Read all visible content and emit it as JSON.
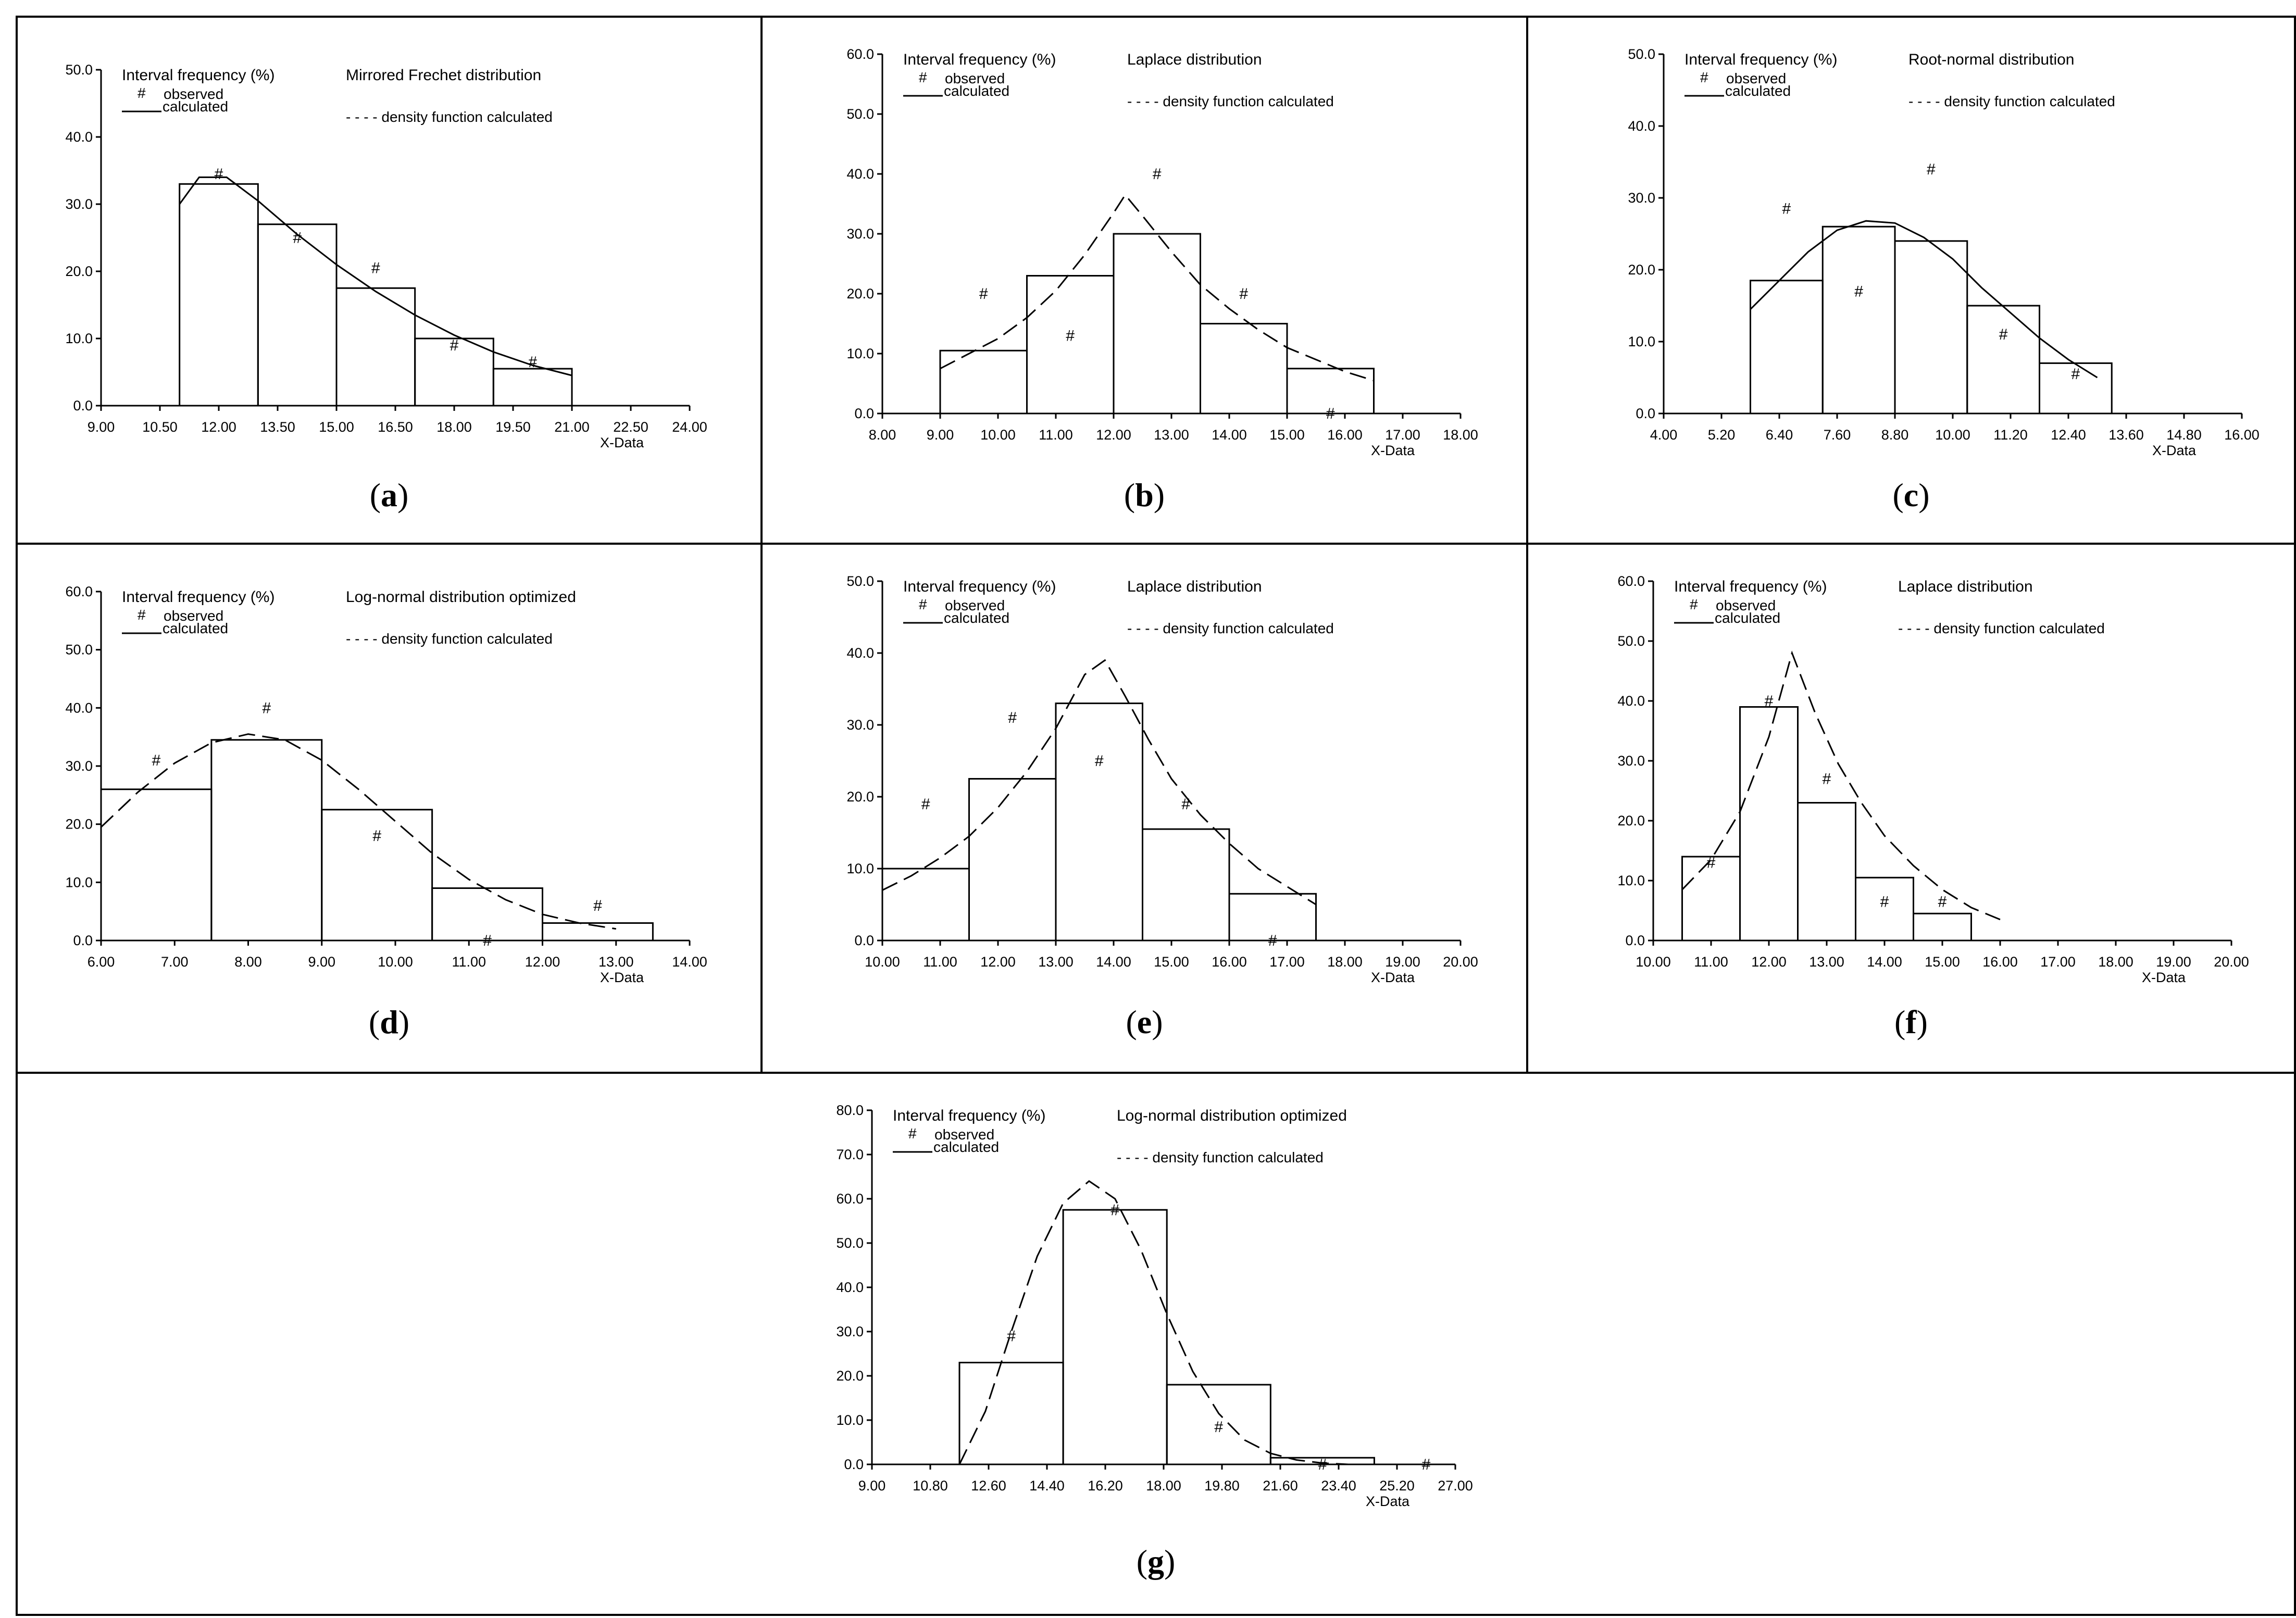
{
  "chart_data": [
    {
      "type": "bar",
      "panel_label": "a",
      "title": "Mirrored Frechet distribution",
      "ylabel": "Interval frequency (%)",
      "xlabel": "X-Data",
      "legend": {
        "observed_symbol": "#",
        "observed_label": "observed",
        "calculated_label": "calculated",
        "density_label": "- - - - density function calculated"
      },
      "curve_style": "solid",
      "xlim": [
        9.0,
        24.0
      ],
      "ylim": [
        0,
        50
      ],
      "xticks": [
        "9.00",
        "10.50",
        "12.00",
        "13.50",
        "15.00",
        "16.50",
        "18.00",
        "19.50",
        "21.00",
        "22.50",
        "24.00"
      ],
      "yticks": [
        "0.0",
        "10.0",
        "20.0",
        "30.0",
        "40.0",
        "50.0"
      ],
      "bins": [
        {
          "x0": 11.0,
          "x1": 13.0,
          "value": 33.0
        },
        {
          "x0": 13.0,
          "x1": 15.0,
          "value": 27.0
        },
        {
          "x0": 15.0,
          "x1": 17.0,
          "value": 17.5
        },
        {
          "x0": 17.0,
          "x1": 19.0,
          "value": 10.0
        },
        {
          "x0": 19.0,
          "x1": 21.0,
          "value": 5.5
        }
      ],
      "observed": [
        {
          "x": 12.0,
          "y": 34.5
        },
        {
          "x": 14.0,
          "y": 25.0
        },
        {
          "x": 16.0,
          "y": 20.5
        },
        {
          "x": 18.0,
          "y": 9.0
        },
        {
          "x": 20.0,
          "y": 6.5
        }
      ],
      "curve": [
        [
          11.0,
          30.0
        ],
        [
          11.5,
          34.0
        ],
        [
          12.2,
          34.0
        ],
        [
          13.0,
          30.5
        ],
        [
          14.0,
          25.5
        ],
        [
          15.0,
          21.0
        ],
        [
          16.0,
          17.0
        ],
        [
          17.0,
          13.5
        ],
        [
          18.0,
          10.5
        ],
        [
          19.0,
          8.0
        ],
        [
          20.0,
          6.0
        ],
        [
          21.0,
          4.5
        ]
      ]
    },
    {
      "type": "bar",
      "panel_label": "b",
      "title": "Laplace distribution",
      "ylabel": "Interval frequency (%)",
      "xlabel": "X-Data",
      "legend": {
        "observed_symbol": "#",
        "observed_label": "observed",
        "calculated_label": "calculated",
        "density_label": "- - - - density function calculated"
      },
      "curve_style": "dashed",
      "xlim": [
        8.0,
        18.0
      ],
      "ylim": [
        0,
        60
      ],
      "xticks": [
        "8.00",
        "9.00",
        "10.00",
        "11.00",
        "12.00",
        "13.00",
        "14.00",
        "15.00",
        "16.00",
        "17.00",
        "18.00"
      ],
      "yticks": [
        "0.0",
        "10.0",
        "20.0",
        "30.0",
        "40.0",
        "50.0",
        "60.0"
      ],
      "bins": [
        {
          "x0": 9.0,
          "x1": 10.5,
          "value": 10.5
        },
        {
          "x0": 10.5,
          "x1": 12.0,
          "value": 23.0
        },
        {
          "x0": 12.0,
          "x1": 13.5,
          "value": 30.0
        },
        {
          "x0": 13.5,
          "x1": 15.0,
          "value": 15.0
        },
        {
          "x0": 15.0,
          "x1": 16.5,
          "value": 7.5
        }
      ],
      "observed": [
        {
          "x": 9.75,
          "y": 20.0
        },
        {
          "x": 11.25,
          "y": 13.0
        },
        {
          "x": 12.75,
          "y": 40.0
        },
        {
          "x": 14.25,
          "y": 20.0
        },
        {
          "x": 15.75,
          "y": 0.0
        }
      ],
      "curve": [
        [
          9.0,
          7.5
        ],
        [
          9.5,
          10.0
        ],
        [
          10.0,
          12.5
        ],
        [
          10.5,
          16.0
        ],
        [
          11.0,
          20.5
        ],
        [
          11.5,
          26.5
        ],
        [
          12.0,
          33.5
        ],
        [
          12.2,
          36.5
        ],
        [
          12.5,
          33.0
        ],
        [
          13.0,
          27.0
        ],
        [
          13.5,
          21.5
        ],
        [
          14.0,
          17.5
        ],
        [
          14.5,
          14.0
        ],
        [
          15.0,
          11.0
        ],
        [
          15.5,
          9.0
        ],
        [
          16.0,
          7.0
        ],
        [
          16.5,
          5.5
        ]
      ]
    },
    {
      "type": "bar",
      "panel_label": "c",
      "title": "Root-normal distribution",
      "ylabel": "Interval frequency (%)",
      "xlabel": "X-Data",
      "legend": {
        "observed_symbol": "#",
        "observed_label": "observed",
        "calculated_label": "calculated",
        "density_label": "- - - - density function calculated"
      },
      "curve_style": "solid",
      "xlim": [
        4.0,
        16.0
      ],
      "ylim": [
        0,
        50
      ],
      "xticks": [
        "4.00",
        "5.20",
        "6.40",
        "7.60",
        "8.80",
        "10.00",
        "11.20",
        "12.40",
        "13.60",
        "14.80",
        "16.00"
      ],
      "yticks": [
        "0.0",
        "10.0",
        "20.0",
        "30.0",
        "40.0",
        "50.0"
      ],
      "bins": [
        {
          "x0": 5.8,
          "x1": 7.3,
          "value": 18.5
        },
        {
          "x0": 7.3,
          "x1": 8.8,
          "value": 26.0
        },
        {
          "x0": 8.8,
          "x1": 10.3,
          "value": 24.0
        },
        {
          "x0": 10.3,
          "x1": 11.8,
          "value": 15.0
        },
        {
          "x0": 11.8,
          "x1": 13.3,
          "value": 7.0
        }
      ],
      "observed": [
        {
          "x": 6.55,
          "y": 28.5
        },
        {
          "x": 8.05,
          "y": 17.0
        },
        {
          "x": 9.55,
          "y": 34.0
        },
        {
          "x": 11.05,
          "y": 11.0
        },
        {
          "x": 12.55,
          "y": 5.5
        }
      ],
      "curve": [
        [
          5.8,
          14.5
        ],
        [
          6.4,
          18.5
        ],
        [
          7.0,
          22.5
        ],
        [
          7.6,
          25.5
        ],
        [
          8.2,
          26.8
        ],
        [
          8.8,
          26.5
        ],
        [
          9.4,
          24.5
        ],
        [
          10.0,
          21.5
        ],
        [
          10.6,
          17.5
        ],
        [
          11.2,
          14.0
        ],
        [
          11.8,
          10.5
        ],
        [
          12.4,
          7.5
        ],
        [
          13.0,
          5.0
        ]
      ]
    },
    {
      "type": "bar",
      "panel_label": "d",
      "title": "Log-normal distribution optimized",
      "ylabel": "Interval frequency (%)",
      "xlabel": "X-Data",
      "legend": {
        "observed_symbol": "#",
        "observed_label": "observed",
        "calculated_label": "calculated",
        "density_label": "- - - - density function calculated"
      },
      "curve_style": "dashed",
      "xlim": [
        6.0,
        14.0
      ],
      "ylim": [
        0,
        60
      ],
      "xticks": [
        "6.00",
        "7.00",
        "8.00",
        "9.00",
        "10.00",
        "11.00",
        "12.00",
        "13.00",
        "14.00"
      ],
      "yticks": [
        "0.0",
        "10.0",
        "20.0",
        "30.0",
        "40.0",
        "50.0",
        "60.0"
      ],
      "bins": [
        {
          "x0": 6.0,
          "x1": 7.5,
          "value": 26.0
        },
        {
          "x0": 7.5,
          "x1": 9.0,
          "value": 34.5
        },
        {
          "x0": 9.0,
          "x1": 10.5,
          "value": 22.5
        },
        {
          "x0": 10.5,
          "x1": 12.0,
          "value": 9.0
        },
        {
          "x0": 12.0,
          "x1": 13.5,
          "value": 3.0
        }
      ],
      "observed": [
        {
          "x": 6.75,
          "y": 31.0
        },
        {
          "x": 8.25,
          "y": 40.0
        },
        {
          "x": 9.75,
          "y": 18.0
        },
        {
          "x": 11.25,
          "y": 0.0
        },
        {
          "x": 12.75,
          "y": 6.0
        }
      ],
      "curve": [
        [
          6.0,
          19.5
        ],
        [
          6.5,
          25.5
        ],
        [
          7.0,
          30.5
        ],
        [
          7.5,
          34.0
        ],
        [
          8.0,
          35.5
        ],
        [
          8.5,
          34.5
        ],
        [
          9.0,
          31.0
        ],
        [
          9.5,
          26.0
        ],
        [
          10.0,
          20.5
        ],
        [
          10.5,
          15.0
        ],
        [
          11.0,
          10.5
        ],
        [
          11.5,
          7.0
        ],
        [
          12.0,
          4.5
        ],
        [
          12.5,
          3.0
        ],
        [
          13.0,
          2.0
        ]
      ]
    },
    {
      "type": "bar",
      "panel_label": "e",
      "title": "Laplace distribution",
      "ylabel": "Interval frequency (%)",
      "xlabel": "X-Data",
      "legend": {
        "observed_symbol": "#",
        "observed_label": "observed",
        "calculated_label": "calculated",
        "density_label": "- - - - density function calculated"
      },
      "curve_style": "dashed",
      "xlim": [
        10.0,
        20.0
      ],
      "ylim": [
        0,
        50
      ],
      "xticks": [
        "10.00",
        "11.00",
        "12.00",
        "13.00",
        "14.00",
        "15.00",
        "16.00",
        "17.00",
        "18.00",
        "19.00",
        "20.00"
      ],
      "yticks": [
        "0.0",
        "10.0",
        "20.0",
        "30.0",
        "40.0",
        "50.0"
      ],
      "bins": [
        {
          "x0": 10.0,
          "x1": 11.5,
          "value": 10.0
        },
        {
          "x0": 11.5,
          "x1": 13.0,
          "value": 22.5
        },
        {
          "x0": 13.0,
          "x1": 14.5,
          "value": 33.0
        },
        {
          "x0": 14.5,
          "x1": 16.0,
          "value": 15.5
        },
        {
          "x0": 16.0,
          "x1": 17.5,
          "value": 6.5
        }
      ],
      "observed": [
        {
          "x": 10.75,
          "y": 19.0
        },
        {
          "x": 12.25,
          "y": 31.0
        },
        {
          "x": 13.75,
          "y": 25.0
        },
        {
          "x": 15.25,
          "y": 19.0
        },
        {
          "x": 16.75,
          "y": 0.0
        }
      ],
      "curve": [
        [
          10.0,
          7.0
        ],
        [
          10.5,
          9.0
        ],
        [
          11.0,
          11.5
        ],
        [
          11.5,
          14.5
        ],
        [
          12.0,
          18.5
        ],
        [
          12.5,
          23.5
        ],
        [
          13.0,
          29.5
        ],
        [
          13.5,
          37.0
        ],
        [
          13.85,
          39.0
        ],
        [
          14.2,
          34.0
        ],
        [
          14.6,
          28.0
        ],
        [
          15.0,
          22.5
        ],
        [
          15.5,
          17.5
        ],
        [
          16.0,
          13.5
        ],
        [
          16.5,
          10.0
        ],
        [
          17.0,
          7.5
        ],
        [
          17.5,
          5.0
        ]
      ]
    },
    {
      "type": "bar",
      "panel_label": "f",
      "title": "Laplace distribution",
      "ylabel": "Interval frequency (%)",
      "xlabel": "X-Data",
      "legend": {
        "observed_symbol": "#",
        "observed_label": "observed",
        "calculated_label": "calculated",
        "density_label": "- - - - density function calculated"
      },
      "curve_style": "dashed",
      "xlim": [
        10.0,
        20.0
      ],
      "ylim": [
        0,
        60
      ],
      "xticks": [
        "10.00",
        "11.00",
        "12.00",
        "13.00",
        "14.00",
        "15.00",
        "16.00",
        "17.00",
        "18.00",
        "19.00",
        "20.00"
      ],
      "yticks": [
        "0.0",
        "10.0",
        "20.0",
        "30.0",
        "40.0",
        "50.0",
        "60.0"
      ],
      "bins": [
        {
          "x0": 10.5,
          "x1": 11.5,
          "value": 14.0
        },
        {
          "x0": 11.5,
          "x1": 12.5,
          "value": 39.0
        },
        {
          "x0": 12.5,
          "x1": 13.5,
          "value": 23.0
        },
        {
          "x0": 13.5,
          "x1": 14.5,
          "value": 10.5
        },
        {
          "x0": 14.5,
          "x1": 15.5,
          "value": 4.5
        }
      ],
      "observed": [
        {
          "x": 11.0,
          "y": 13.0
        },
        {
          "x": 12.0,
          "y": 40.0
        },
        {
          "x": 13.0,
          "y": 27.0
        },
        {
          "x": 14.0,
          "y": 6.5
        },
        {
          "x": 15.0,
          "y": 6.5
        }
      ],
      "curve": [
        [
          10.5,
          8.5
        ],
        [
          11.0,
          13.5
        ],
        [
          11.5,
          21.5
        ],
        [
          12.0,
          34.0
        ],
        [
          12.4,
          48.0
        ],
        [
          12.8,
          38.0
        ],
        [
          13.2,
          29.5
        ],
        [
          13.6,
          23.0
        ],
        [
          14.0,
          17.5
        ],
        [
          14.5,
          12.5
        ],
        [
          15.0,
          8.5
        ],
        [
          15.5,
          5.5
        ],
        [
          16.0,
          3.5
        ]
      ]
    },
    {
      "type": "bar",
      "panel_label": "g",
      "title": "Log-normal distribution optimized",
      "ylabel": "Interval frequency (%)",
      "xlabel": "X-Data",
      "legend": {
        "observed_symbol": "#",
        "observed_label": "observed",
        "calculated_label": "calculated",
        "density_label": "- - - - density function calculated"
      },
      "curve_style": "dashed",
      "xlim": [
        9.0,
        27.0
      ],
      "ylim": [
        0,
        80
      ],
      "xticks": [
        "9.00",
        "10.80",
        "12.60",
        "14.40",
        "16.20",
        "18.00",
        "19.80",
        "21.60",
        "23.40",
        "25.20",
        "27.00"
      ],
      "yticks": [
        "0.0",
        "10.0",
        "20.0",
        "30.0",
        "40.0",
        "50.0",
        "60.0",
        "70.0",
        "80.0"
      ],
      "bins": [
        {
          "x0": 11.7,
          "x1": 14.9,
          "value": 23.0
        },
        {
          "x0": 14.9,
          "x1": 18.1,
          "value": 57.5
        },
        {
          "x0": 18.1,
          "x1": 21.3,
          "value": 18.0
        },
        {
          "x0": 21.3,
          "x1": 24.5,
          "value": 1.5
        }
      ],
      "observed": [
        {
          "x": 13.3,
          "y": 29.0
        },
        {
          "x": 16.5,
          "y": 57.5
        },
        {
          "x": 19.7,
          "y": 8.5
        },
        {
          "x": 22.9,
          "y": 0.0
        },
        {
          "x": 26.1,
          "y": 0.0
        }
      ],
      "curve": [
        [
          11.7,
          0.0
        ],
        [
          12.5,
          12.0
        ],
        [
          13.3,
          30.0
        ],
        [
          14.1,
          47.0
        ],
        [
          14.9,
          59.0
        ],
        [
          15.7,
          64.0
        ],
        [
          16.5,
          60.0
        ],
        [
          17.3,
          48.5
        ],
        [
          18.1,
          34.0
        ],
        [
          18.9,
          21.0
        ],
        [
          19.7,
          11.5
        ],
        [
          20.5,
          5.5
        ],
        [
          21.3,
          2.5
        ],
        [
          22.1,
          1.0
        ],
        [
          22.9,
          0.3
        ],
        [
          23.7,
          0.0
        ]
      ]
    }
  ]
}
